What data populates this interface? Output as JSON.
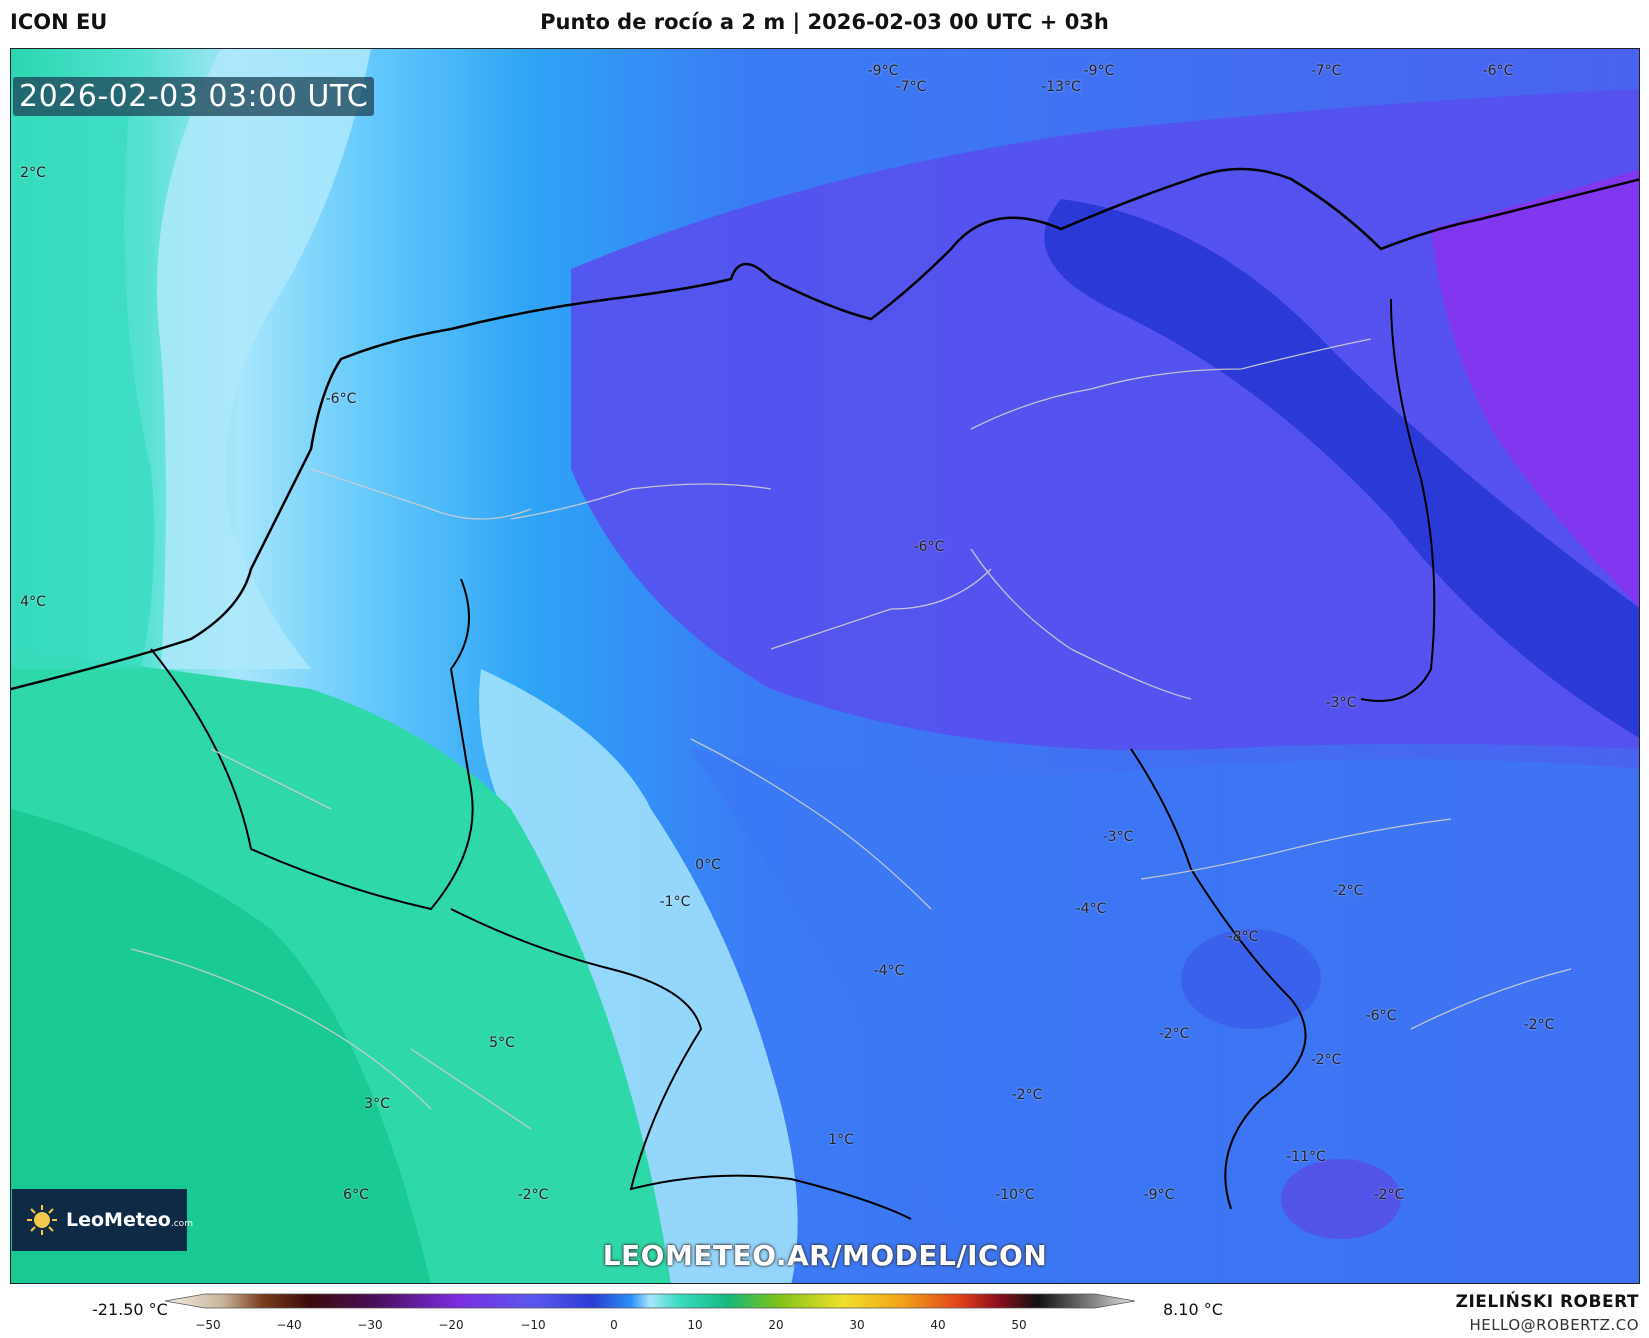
{
  "header": {
    "model": "ICON EU",
    "title": "Punto de rocío a 2 m | 2026-02-03 00 UTC + 03h"
  },
  "map": {
    "valid_time": "2026-02-03 03:00 UTC",
    "watermark": "LEOMETEO.AR/MODEL/ICON",
    "logo_text": "LeoMeteo",
    "logo_suffix": ".com",
    "temp_labels": [
      "2°C",
      "4°C",
      "-6°C",
      "-9°C",
      "-7°C",
      "-13°C",
      "-9°C",
      "-7°C",
      "-6°C",
      "-6°C",
      "-3°C",
      "-3°C",
      "0°C",
      "-1°C",
      "-2°C",
      "-8°C",
      "-4°C",
      "-4°C",
      "-6°C",
      "-2°C",
      "-2°C",
      "-2°C",
      "5°C",
      "3°C",
      "1°C",
      "-11°C",
      "-10°C",
      "-9°C",
      "-2°C",
      "6°C",
      "-2°C",
      "-2°C"
    ]
  },
  "colorbar": {
    "min_label": "-21.50 °C",
    "max_label": "8.10 °C",
    "ticks": [
      "−50",
      "−40",
      "−30",
      "−20",
      "−10",
      "0",
      "10",
      "20",
      "30",
      "40",
      "50"
    ]
  },
  "footer": {
    "author": "ZIELIŃSKI ROBERT",
    "email": "HELLO@ROBERTZ.CO"
  },
  "colors": {
    "warm_green": "#1ecf9c",
    "cyan": "#5fe0d8",
    "light_blue": "#a8e6fb",
    "mid_blue": "#2aa8f5",
    "blue": "#3d6cf4",
    "violet": "#5b50ee",
    "deep_blue": "#2a3ad8",
    "purple": "#8a2cf0"
  }
}
